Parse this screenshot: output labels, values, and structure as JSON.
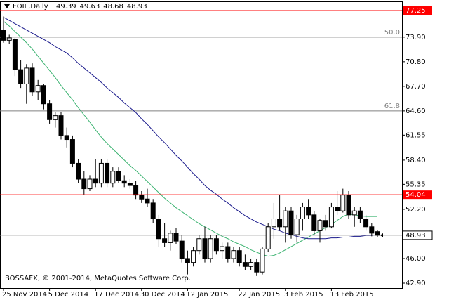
{
  "chart_data": {
    "type": "candlestick",
    "title": "FOIL,Daily",
    "watermark": "BOSSAFX, © 2001-2014, MetaQuotes Software Corp.",
    "categories": [
      "25 Nov 2014",
      null,
      null,
      null,
      null,
      null,
      null,
      null,
      "5 Dec 2014",
      null,
      null,
      null,
      null,
      null,
      null,
      null,
      "17 Dec 2014",
      null,
      null,
      null,
      null,
      null,
      null,
      null,
      "30 Dec 2014",
      null,
      null,
      null,
      null,
      null,
      null,
      null,
      "12 Jan 2015",
      null,
      null,
      null,
      null,
      null,
      null,
      null,
      null,
      "22 Jan 2015",
      null,
      null,
      null,
      null,
      null,
      null,
      null,
      "3 Feb 2015",
      null,
      null,
      null,
      null,
      null,
      null,
      null,
      "13 Feb 2015",
      null,
      null,
      null,
      null,
      null,
      null,
      null,
      null
    ],
    "open": [
      74.8,
      73.5,
      73.6,
      69.8,
      68.0,
      70.0,
      67.0,
      67.8,
      65.5,
      63.5,
      64.0,
      61.5,
      61.0,
      58.0,
      56.0,
      54.8,
      56.0,
      55.5,
      58.0,
      55.5,
      57.0,
      55.8,
      55.5,
      55.2,
      54.0,
      53.5,
      53.0,
      51.0,
      48.5,
      48.0,
      49.2,
      48.2,
      46.0,
      45.5,
      47.0,
      48.5,
      46.0,
      48.5,
      47.0,
      47.5,
      46.0,
      47.0,
      45.5,
      45.0,
      45.5,
      44.3,
      47.2,
      50.0,
      51.0,
      50.0,
      52.0,
      49.0,
      51.0,
      52.5,
      51.5,
      49.5,
      50.8,
      50.0,
      52.5,
      52.0,
      54.0,
      51.5,
      52.0,
      51.0,
      50.0,
      49.39
    ],
    "high": [
      76.5,
      74.2,
      73.8,
      71.0,
      70.5,
      70.6,
      68.5,
      68.0,
      66.0,
      64.5,
      64.5,
      62.5,
      61.5,
      58.5,
      57.0,
      56.5,
      58.5,
      58.5,
      58.5,
      57.5,
      57.5,
      56.5,
      56.0,
      55.8,
      54.5,
      54.8,
      53.5,
      51.5,
      50.5,
      49.5,
      49.8,
      49.0,
      47.0,
      47.5,
      49.0,
      50.0,
      49.0,
      49.0,
      48.0,
      48.0,
      47.5,
      47.5,
      46.5,
      46.0,
      46.0,
      47.5,
      50.5,
      53.0,
      54.0,
      52.5,
      52.5,
      51.5,
      53.0,
      53.5,
      52.0,
      51.0,
      51.5,
      53.0,
      54.5,
      54.8,
      54.5,
      52.5,
      52.5,
      51.5,
      50.5,
      49.63
    ],
    "low": [
      73.2,
      73.0,
      69.0,
      67.5,
      65.5,
      66.5,
      66.0,
      64.8,
      63.0,
      62.5,
      61.0,
      60.0,
      57.5,
      55.5,
      54.0,
      54.5,
      55.0,
      55.0,
      55.0,
      55.0,
      55.5,
      55.0,
      54.8,
      53.5,
      53.0,
      52.5,
      50.5,
      47.5,
      47.5,
      47.0,
      47.8,
      45.5,
      44.0,
      45.0,
      46.5,
      45.5,
      45.5,
      46.5,
      46.0,
      45.5,
      45.5,
      45.0,
      44.5,
      44.5,
      43.8,
      44.0,
      46.8,
      48.5,
      49.5,
      48.0,
      48.5,
      48.0,
      49.5,
      51.0,
      49.0,
      48.0,
      49.5,
      49.8,
      51.5,
      51.8,
      51.0,
      50.0,
      50.5,
      49.5,
      48.8,
      48.68
    ],
    "close": [
      73.5,
      73.8,
      69.8,
      68.0,
      70.0,
      67.0,
      67.8,
      65.5,
      63.5,
      64.0,
      61.5,
      61.0,
      58.0,
      56.0,
      54.8,
      56.0,
      55.5,
      58.0,
      55.5,
      57.0,
      55.8,
      55.5,
      55.2,
      54.0,
      53.5,
      53.0,
      51.0,
      48.5,
      48.0,
      49.2,
      48.2,
      46.0,
      45.5,
      47.0,
      48.5,
      46.0,
      48.5,
      47.0,
      47.5,
      46.0,
      47.0,
      45.5,
      45.0,
      45.5,
      44.3,
      47.2,
      50.0,
      51.0,
      50.0,
      52.0,
      49.0,
      51.0,
      52.5,
      51.5,
      49.5,
      50.8,
      50.0,
      52.5,
      52.0,
      54.0,
      51.5,
      52.0,
      51.0,
      50.0,
      49.2,
      48.93
    ],
    "lines": [
      {
        "color": "#3cb371",
        "values": [
          75.9,
          75.3,
          74.6,
          73.9,
          73.2,
          72.4,
          71.5,
          70.6,
          69.7,
          68.8,
          67.8,
          66.9,
          66.0,
          65.0,
          64.1,
          63.2,
          62.2,
          61.3,
          60.5,
          59.8,
          59.1,
          58.4,
          57.7,
          57.1,
          56.4,
          55.7,
          55.0,
          54.3,
          53.6,
          53.0,
          52.4,
          51.9,
          51.4,
          50.9,
          50.4,
          50.0,
          49.6,
          49.2,
          48.8,
          48.5,
          48.1,
          47.8,
          47.5,
          47.1,
          46.8,
          46.5,
          46.3,
          46.4,
          46.7,
          47.1,
          47.5,
          47.9,
          48.3,
          48.7,
          49.1,
          49.5,
          49.9,
          50.3,
          50.8,
          51.3,
          51.6,
          51.5,
          51.4,
          51.3,
          51.3,
          51.3
        ]
      },
      {
        "color": "#1a1a8c",
        "values": [
          76.4,
          76.0,
          75.6,
          75.2,
          74.8,
          74.4,
          74.0,
          73.6,
          73.2,
          72.7,
          72.3,
          71.9,
          71.3,
          70.6,
          70.0,
          69.4,
          68.8,
          68.2,
          67.5,
          66.9,
          66.3,
          65.6,
          65.0,
          64.4,
          63.6,
          62.9,
          62.1,
          61.3,
          60.6,
          59.8,
          59.0,
          58.3,
          57.5,
          56.7,
          56.0,
          55.2,
          54.6,
          54.1,
          53.5,
          53.0,
          52.4,
          51.9,
          51.4,
          51.0,
          50.6,
          50.3,
          50.0,
          49.7,
          49.5,
          49.2,
          49.0,
          48.8,
          48.6,
          48.5,
          48.5,
          48.5,
          48.5,
          48.6,
          48.6,
          48.7,
          48.7,
          48.8,
          48.8,
          48.9,
          48.9,
          49.0
        ]
      }
    ],
    "hlines": [
      {
        "value": 77.25,
        "color": "#ff0000"
      },
      {
        "value": 54.04,
        "color": "#ff0000"
      }
    ],
    "levels": [
      {
        "name": "50.0",
        "value": 73.9
      },
      {
        "name": "61.8",
        "value": 64.6
      }
    ],
    "ylim": [
      42.28,
      78.4
    ],
    "yticks": [
      {
        "value": 73.9,
        "label": "73.90"
      },
      {
        "value": 70.8,
        "label": "70.80"
      },
      {
        "value": 67.7,
        "label": "67.70"
      },
      {
        "value": 64.6,
        "label": "64.60"
      },
      61.55,
      {
        "value": 58.4,
        "label": "58.40"
      },
      55.35,
      {
        "value": 52.2,
        "label": "52.20"
      },
      {
        "value": 46,
        "label": "46.00"
      },
      {
        "value": 42.9,
        "label": "42.90"
      }
    ]
  }
}
